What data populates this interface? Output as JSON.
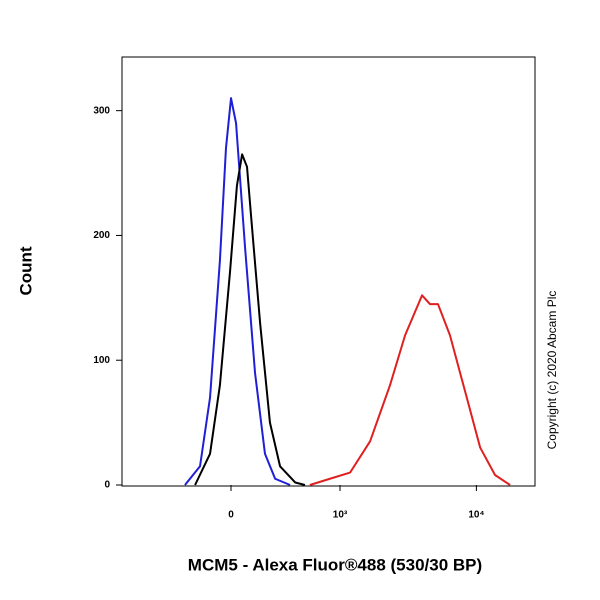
{
  "chart_data": {
    "type": "line",
    "x_label": "MCM5 - Alexa Fluor®488 (530/30 BP)",
    "y_label": "Count",
    "annotation": "Copyright (c) 2020 Abcam Plc",
    "xscale": "biexponential",
    "xlim": [
      -1000,
      26600
    ],
    "ylim": [
      0,
      343
    ],
    "xticks": [
      {
        "value": 0,
        "label": "0"
      },
      {
        "value": 1000,
        "label": "10³"
      },
      {
        "value": 10000,
        "label": "10⁴"
      }
    ],
    "yticks": [
      0,
      100,
      200,
      300
    ],
    "series": [
      {
        "color": "#1f1fd6",
        "x": [
          -282,
          -180,
          -119,
          -62,
          -28,
          0,
          28,
          79,
          137,
          199,
          268,
          384
        ],
        "values": [
          0,
          15,
          70,
          180,
          270,
          310,
          290,
          190,
          90,
          25,
          5,
          0
        ]
      },
      {
        "color": "#000000",
        "x": [
          -212,
          -119,
          -62,
          -6,
          33,
          62,
          90,
          117,
          168,
          232,
          304,
          430,
          524
        ],
        "values": [
          0,
          25,
          80,
          170,
          240,
          265,
          255,
          210,
          130,
          50,
          15,
          2,
          0
        ]
      },
      {
        "color": "#e02020",
        "x": [
          576,
          836,
          1193,
          1680,
          2354,
          3034,
          4030,
          4600,
          5260,
          6430,
          8280,
          10650,
          13650,
          17550
        ],
        "values": [
          0,
          5,
          10,
          35,
          80,
          120,
          152,
          145,
          145,
          120,
          75,
          30,
          8,
          0
        ]
      }
    ]
  }
}
